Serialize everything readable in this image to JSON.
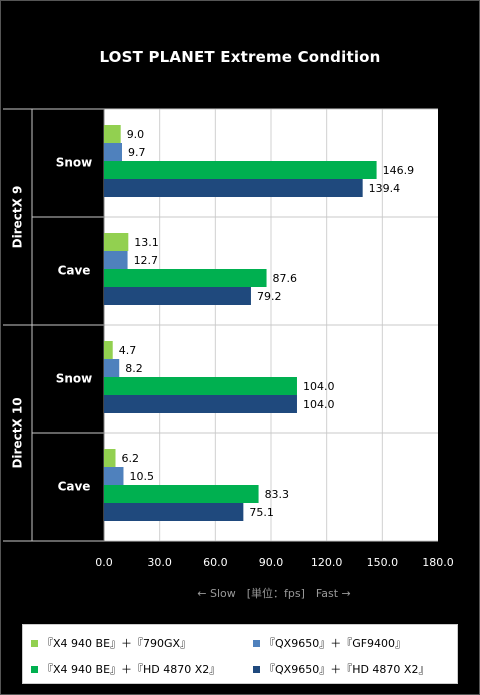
{
  "chart_data": {
    "type": "bar",
    "orientation": "horizontal",
    "title": "LOST PLANET Extreme Condition",
    "xlabel": "← Slow　[単位：fps]　Fast →",
    "xlim": [
      0,
      180
    ],
    "x_ticks": [
      "0.0",
      "30.0",
      "60.0",
      "90.0",
      "120.0",
      "150.0",
      "180.0"
    ],
    "grid": true,
    "legend_position": "bottom",
    "groups": [
      {
        "name": "DirectX 9",
        "categories": [
          "Snow",
          "Cave"
        ]
      },
      {
        "name": "DirectX 10",
        "categories": [
          "Snow",
          "Cave"
        ]
      }
    ],
    "series": [
      {
        "name": "『X4 940 BE』＋『790GX』",
        "color": "#92d050",
        "values": [
          9.0,
          13.1,
          4.7,
          6.2
        ],
        "labels": [
          "9.0",
          "13.1",
          "4.7",
          "6.2"
        ]
      },
      {
        "name": "『QX9650』＋『GF9400』",
        "color": "#4f81bd",
        "values": [
          9.7,
          12.7,
          8.2,
          10.5
        ],
        "labels": [
          "9.7",
          "12.7",
          "8.2",
          "10.5"
        ]
      },
      {
        "name": "『X4 940 BE』＋『HD 4870 X2』",
        "color": "#00b050",
        "values": [
          146.9,
          87.6,
          104.0,
          83.3
        ],
        "labels": [
          "146.9",
          "87.6",
          "104.0",
          "83.3"
        ]
      },
      {
        "name": "『QX9650』＋『HD 4870 X2』",
        "color": "#1f497d",
        "values": [
          139.4,
          79.2,
          104.0,
          75.1
        ],
        "labels": [
          "139.4",
          "79.2",
          "104.0",
          "75.1"
        ]
      }
    ]
  }
}
